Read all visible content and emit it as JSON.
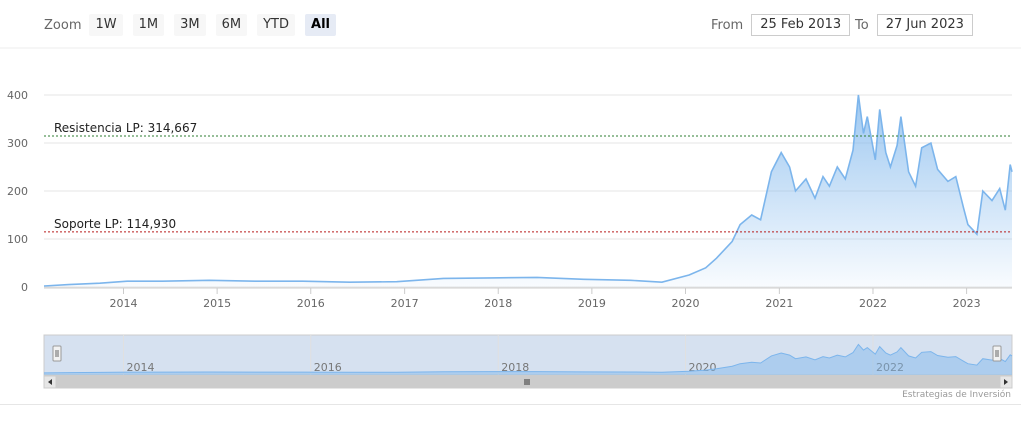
{
  "toolbar": {
    "zoom_label": "Zoom",
    "zoom_buttons": [
      "1W",
      "1M",
      "3M",
      "6M",
      "YTD",
      "All"
    ],
    "active_zoom": "All",
    "from_label": "From",
    "from_value": "25 Feb 2013",
    "to_label": "To",
    "to_value": "27 Jun 2023"
  },
  "credits": "Estrategias de Inversión",
  "colors": {
    "series_line": "#7cb5ec",
    "area_top": "#7cb5ec",
    "resistance_line": "#2e7d32",
    "support_line": "#b71c1c",
    "navigator_mask": "#c5d4ea"
  },
  "chart_data": {
    "type": "area",
    "title": "",
    "xlabel": "",
    "ylabel": "",
    "ylim": [
      0,
      420
    ],
    "y_ticks": [
      "0",
      "100",
      "200",
      "300",
      "400"
    ],
    "x_ticks": [
      "2014",
      "2015",
      "2016",
      "2017",
      "2018",
      "2019",
      "2020",
      "2021",
      "2022",
      "2023"
    ],
    "xlim": [
      "2013-02-25",
      "2023-06-27"
    ],
    "grid": true,
    "series": [
      {
        "x": [
          "2013-02-25",
          "2013-06-01",
          "2013-10-01",
          "2014-01-15",
          "2014-06-01",
          "2014-12-01",
          "2015-06-01",
          "2015-12-01",
          "2016-06-01",
          "2016-12-01",
          "2017-06-01",
          "2017-12-01",
          "2018-06-01",
          "2018-12-01",
          "2019-06-01",
          "2019-10-01",
          "2020-01-15",
          "2020-03-20",
          "2020-05-01",
          "2020-07-01",
          "2020-08-01",
          "2020-09-15",
          "2020-10-20",
          "2020-12-01",
          "2021-01-08",
          "2021-02-10",
          "2021-03-05",
          "2021-04-15",
          "2021-05-20",
          "2021-06-20",
          "2021-07-15",
          "2021-08-15",
          "2021-09-15",
          "2021-10-15",
          "2021-11-05",
          "2021-11-25",
          "2021-12-10",
          "2022-01-10",
          "2022-01-27",
          "2022-02-20",
          "2022-03-10",
          "2022-04-05",
          "2022-04-20",
          "2022-05-20",
          "2022-06-16",
          "2022-07-10",
          "2022-08-15",
          "2022-09-10",
          "2022-10-20",
          "2022-11-20",
          "2022-12-20",
          "2023-01-06",
          "2023-02-10",
          "2023-03-05",
          "2023-04-10",
          "2023-05-10",
          "2023-06-01",
          "2023-06-20",
          "2023-06-27"
        ],
        "y": [
          2,
          5,
          8,
          12,
          12,
          14,
          12,
          12,
          10,
          11,
          18,
          19,
          20,
          16,
          14,
          10,
          25,
          40,
          60,
          95,
          130,
          150,
          140,
          240,
          280,
          250,
          200,
          225,
          185,
          230,
          210,
          250,
          225,
          285,
          400,
          320,
          355,
          265,
          370,
          280,
          250,
          295,
          355,
          240,
          210,
          290,
          300,
          245,
          220,
          230,
          165,
          130,
          110,
          200,
          180,
          205,
          160,
          255,
          240
        ]
      }
    ],
    "annotations": [
      {
        "label": "Resistencia LP: 314,667",
        "value": 314.667,
        "color_key": "resistance_line"
      },
      {
        "label": "Soporte LP: 114,930",
        "value": 114.93,
        "color_key": "support_line"
      }
    ],
    "navigator": {
      "x_ticks": [
        "2014",
        "2016",
        "2018",
        "2020",
        "2022"
      ]
    }
  }
}
